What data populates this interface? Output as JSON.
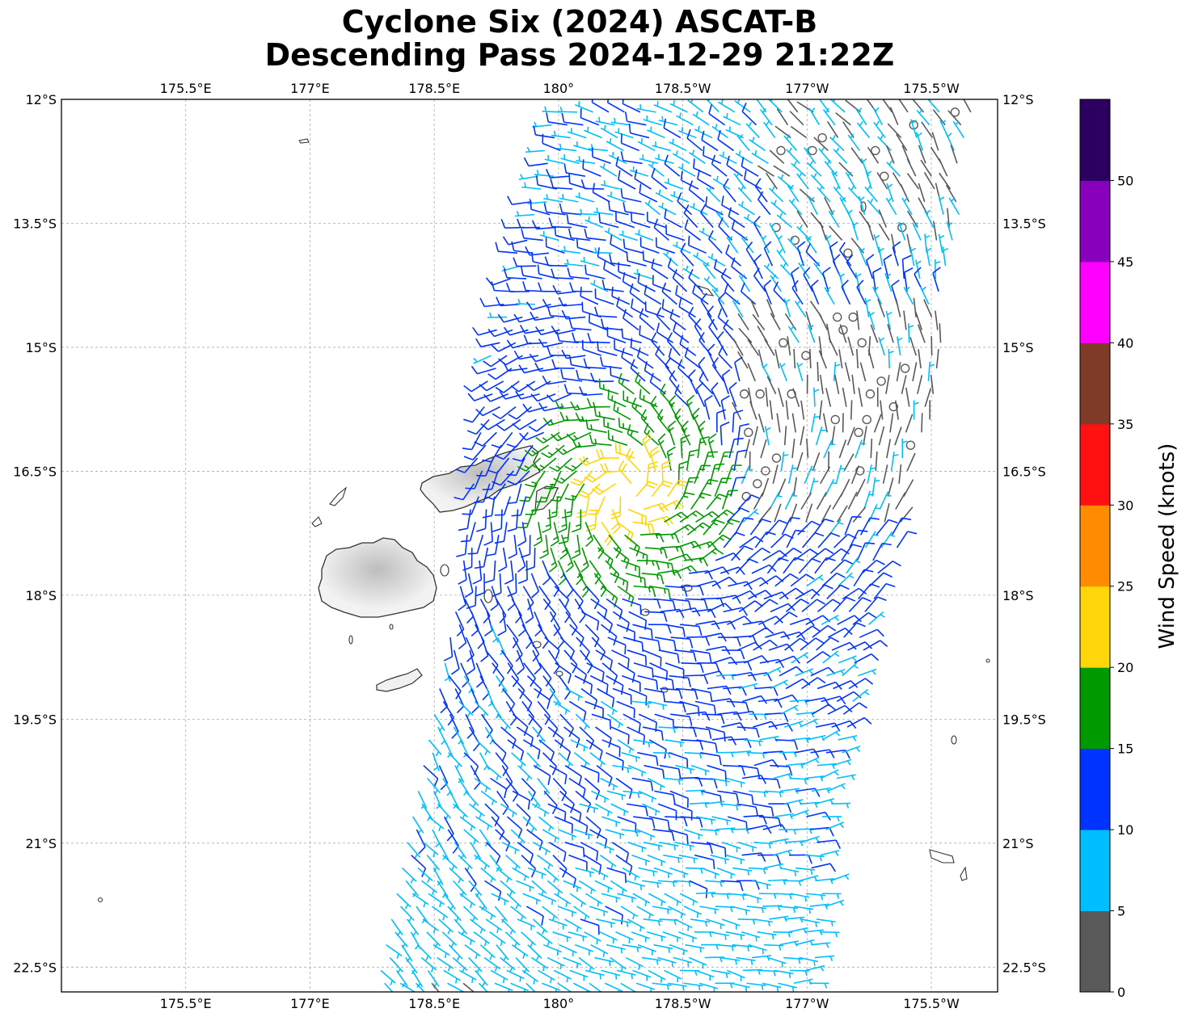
{
  "title": {
    "line1": "Cyclone Six (2024) ASCAT-B",
    "line2": "Descending Pass 2024-12-29 21:22Z"
  },
  "map": {
    "lon_ticks": [
      "175.5°E",
      "177°E",
      "178.5°E",
      "180°",
      "178.5°W",
      "177°W",
      "175.5°W"
    ],
    "lon_tick_values": [
      175.5,
      177,
      178.5,
      180,
      181.5,
      183,
      184.5
    ],
    "lat_ticks": [
      "12°S",
      "13.5°S",
      "15°S",
      "16.5°S",
      "18°S",
      "19.5°S",
      "21°S",
      "22.5°S"
    ],
    "lat_tick_values": [
      -12,
      -13.5,
      -15,
      -16.5,
      -18,
      -19.5,
      -21,
      -22.5
    ],
    "lon_range": [
      174,
      185.3
    ],
    "lat_range": [
      -12,
      -22.8
    ],
    "gridlines": true,
    "land_color": "#e8e8e8",
    "coast_color": "#333333"
  },
  "colorbar": {
    "label": "Wind Speed (knots)",
    "ticks": [
      "0",
      "5",
      "10",
      "15",
      "20",
      "25",
      "30",
      "35",
      "40",
      "45",
      "50"
    ],
    "bins": [
      {
        "min": 0,
        "max": 5,
        "color": "#595959"
      },
      {
        "min": 5,
        "max": 10,
        "color": "#00bfff"
      },
      {
        "min": 10,
        "max": 15,
        "color": "#0033ff"
      },
      {
        "min": 15,
        "max": 20,
        "color": "#009900"
      },
      {
        "min": 20,
        "max": 25,
        "color": "#ffd60a"
      },
      {
        "min": 25,
        "max": 30,
        "color": "#ff8c00"
      },
      {
        "min": 30,
        "max": 35,
        "color": "#ff1111"
      },
      {
        "min": 35,
        "max": 40,
        "color": "#7f3a28"
      },
      {
        "min": 40,
        "max": 45,
        "color": "#ff00ff"
      },
      {
        "min": 45,
        "max": 50,
        "color": "#8800bb"
      },
      {
        "min": 50,
        "max": 55,
        "color": "#2b0060"
      }
    ]
  },
  "wind_field": {
    "center_lon": 180.85,
    "center_lat": -16.75,
    "swath_west_edge_lon": [
      [
        -12,
        180.0
      ],
      [
        -15,
        179.2
      ],
      [
        -18,
        178.8
      ],
      [
        -22.8,
        177.8
      ]
    ],
    "swath_east_edge_lon": [
      [
        -12,
        185.0
      ],
      [
        -16,
        184.4
      ],
      [
        -19,
        183.6
      ],
      [
        -22.8,
        183.0
      ]
    ]
  }
}
